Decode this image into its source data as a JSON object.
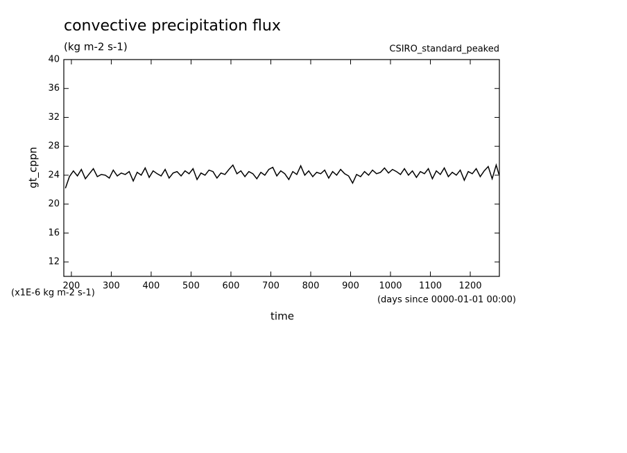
{
  "chart_data": {
    "type": "line",
    "title": "convective precipitation flux",
    "subtitle": "(kg m-2 s-1)",
    "annotation": "CSIRO_standard_peaked",
    "y_label": "gt_cppn",
    "y_unit": "(x1E-6 kg m-2 s-1)",
    "x_label": "time",
    "x_unit": "(days since 0000-01-01 00:00)",
    "xlim": [
      181,
      1273
    ],
    "ylim": [
      10,
      40
    ],
    "xticks": [
      200,
      300,
      400,
      500,
      600,
      700,
      800,
      900,
      1000,
      1100,
      1200
    ],
    "yticks": [
      12,
      16,
      20,
      24,
      28,
      32,
      36,
      40
    ],
    "x": [
      185,
      195,
      205,
      215,
      225,
      235,
      245,
      255,
      265,
      275,
      285,
      295,
      305,
      315,
      325,
      335,
      345,
      355,
      365,
      375,
      385,
      395,
      405,
      415,
      425,
      435,
      445,
      455,
      465,
      475,
      485,
      495,
      505,
      515,
      525,
      535,
      545,
      555,
      565,
      575,
      585,
      595,
      605,
      615,
      625,
      635,
      645,
      655,
      665,
      675,
      685,
      695,
      705,
      715,
      725,
      735,
      745,
      755,
      765,
      775,
      785,
      795,
      805,
      815,
      825,
      835,
      845,
      855,
      865,
      875,
      885,
      895,
      905,
      915,
      925,
      935,
      945,
      955,
      965,
      975,
      985,
      995,
      1005,
      1015,
      1025,
      1035,
      1045,
      1055,
      1065,
      1075,
      1085,
      1095,
      1105,
      1115,
      1125,
      1135,
      1145,
      1155,
      1165,
      1175,
      1185,
      1195,
      1205,
      1215,
      1225,
      1235,
      1245,
      1255,
      1265,
      1272
    ],
    "series": [
      {
        "color": "#000000",
        "values": [
          22.2,
          23.8,
          24.6,
          23.9,
          24.8,
          23.5,
          24.2,
          24.9,
          23.8,
          24.1,
          24.0,
          23.6,
          24.7,
          23.9,
          24.3,
          24.1,
          24.5,
          23.2,
          24.4,
          24.0,
          25.0,
          23.7,
          24.6,
          24.2,
          23.9,
          24.8,
          23.6,
          24.3,
          24.5,
          23.9,
          24.6,
          24.2,
          24.9,
          23.4,
          24.3,
          24.0,
          24.7,
          24.5,
          23.6,
          24.3,
          24.1,
          24.8,
          25.4,
          24.2,
          24.6,
          23.8,
          24.5,
          24.2,
          23.5,
          24.4,
          24.0,
          24.8,
          25.1,
          23.9,
          24.6,
          24.2,
          23.4,
          24.5,
          24.1,
          25.3,
          24.0,
          24.6,
          23.8,
          24.4,
          24.2,
          24.7,
          23.6,
          24.5,
          24.0,
          24.8,
          24.2,
          23.9,
          22.9,
          24.1,
          23.8,
          24.5,
          24.0,
          24.7,
          24.2,
          24.4,
          25.0,
          24.3,
          24.8,
          24.5,
          24.1,
          24.9,
          24.0,
          24.6,
          23.7,
          24.5,
          24.2,
          24.9,
          23.5,
          24.6,
          24.1,
          25.0,
          23.8,
          24.4,
          24.0,
          24.7,
          23.3,
          24.5,
          24.2,
          24.9,
          23.8,
          24.6,
          25.2,
          23.5,
          25.4,
          24.1
        ]
      }
    ]
  }
}
